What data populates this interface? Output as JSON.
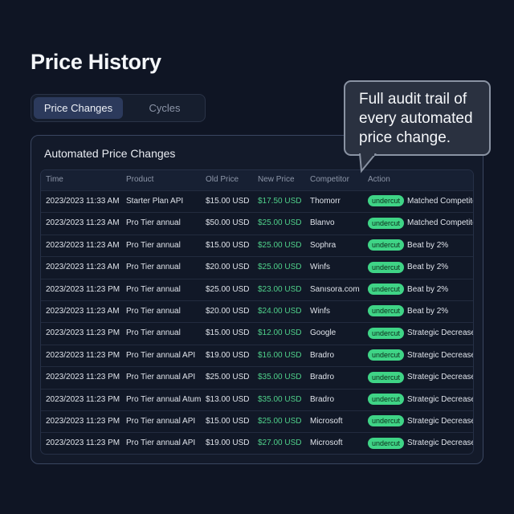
{
  "page": {
    "title": "Price History"
  },
  "tabs": [
    {
      "label": "Price Changes",
      "active": true
    },
    {
      "label": "Cycles",
      "active": false
    }
  ],
  "card": {
    "title": "Automated Price Changes"
  },
  "tooltip": {
    "text": "Full audit trail of every automated price change."
  },
  "colors": {
    "accent_green": "#4fd08a",
    "badge_bg": "#3fd486",
    "active_tab": "#2c3a5c"
  },
  "table": {
    "columns": [
      "Time",
      "Product",
      "Old Price",
      "New Price",
      "Competitor",
      "Action"
    ],
    "rows": [
      {
        "time": "2023/2023 11:33 AM",
        "product": "Starter Plan API",
        "old": "$15.00 USD",
        "new": "$17.50 USD",
        "competitor": "Thomorr",
        "badge": "undercut",
        "action": "Matched Competitor"
      },
      {
        "time": "2023/2023 11:23 AM",
        "product": "Pro Tier annual",
        "old": "$50.00 USD",
        "new": "$25.00 USD",
        "competitor": "Blanvo",
        "badge": "undercut",
        "action": "Matched Competitor"
      },
      {
        "time": "2023/2023 11:23 AM",
        "product": "Pro Tier annual",
        "old": "$15.00 USD",
        "new": "$25.00 USD",
        "competitor": "Sophra",
        "badge": "undercut",
        "action": "Beat by 2%"
      },
      {
        "time": "2023/2023 11:23 AM",
        "product": "Pro Tier annual",
        "old": "$20.00 USD",
        "new": "$25.00 USD",
        "competitor": "Winfs",
        "badge": "undercut",
        "action": "Beat by 2%"
      },
      {
        "time": "2023/2023 11:23 PM",
        "product": "Pro Tier annual",
        "old": "$25.00 USD",
        "new": "$23.00 USD",
        "competitor": "Sanısora.com",
        "badge": "undercut",
        "action": "Beat by 2%"
      },
      {
        "time": "2023/2023 11:23 AM",
        "product": "Pro Tier annual",
        "old": "$20.00 USD",
        "new": "$24.00 USD",
        "competitor": "Winfs",
        "badge": "undercut",
        "action": "Beat by 2%"
      },
      {
        "time": "2023/2023 11:23 PM",
        "product": "Pro Tier annual",
        "old": "$15.00 USD",
        "new": "$12.00 USD",
        "competitor": "Google",
        "badge": "undercut",
        "action": "Strategic Decrease"
      },
      {
        "time": "2023/2023 11:23 PM",
        "product": "Pro Tier annual API",
        "old": "$19.00 USD",
        "new": "$16.00 USD",
        "competitor": "Bradro",
        "badge": "undercut",
        "action": "Strategic Decrease"
      },
      {
        "time": "2023/2023 11:23 PM",
        "product": "Pro Tier annual API",
        "old": "$25.00 USD",
        "new": "$35.00 USD",
        "competitor": "Bradro",
        "badge": "undercut",
        "action": "Strategic Decrease"
      },
      {
        "time": "2023/2023 11:23 PM",
        "product": "Pro Tier annual Atum",
        "old": "$13.00 USD",
        "new": "$35.00 USD",
        "competitor": "Bradro",
        "badge": "undercut",
        "action": "Strategic Decrease"
      },
      {
        "time": "2023/2023 11:23 PM",
        "product": "Pro Tier annual API",
        "old": "$15.00 USD",
        "new": "$25.00 USD",
        "competitor": "Microsoft",
        "badge": "undercut",
        "action": "Strategic Decrease"
      },
      {
        "time": "2023/2023 11:23 PM",
        "product": "Pro Tier annual API",
        "old": "$19.00 USD",
        "new": "$27.00 USD",
        "competitor": "Microsoft",
        "badge": "undercut",
        "action": "Strategic Decrease"
      }
    ]
  }
}
